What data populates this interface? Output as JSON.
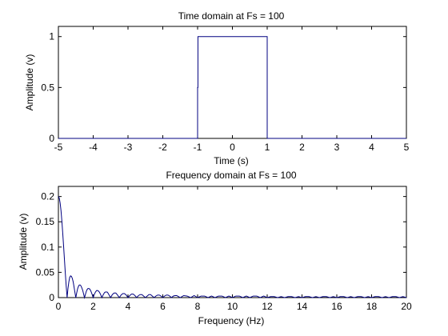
{
  "figure": {
    "background": "#ffffff",
    "axes_color": "#000000"
  },
  "chart_data": [
    {
      "type": "line",
      "title": "Time domain at Fs = 100",
      "xlabel": "Time (s)",
      "ylabel": "Amplitude (v)",
      "xlim": [
        -5,
        5
      ],
      "ylim": [
        0,
        1.1
      ],
      "xticks": [
        -5,
        -4,
        -3,
        -2,
        -1,
        0,
        1,
        2,
        3,
        4,
        5
      ],
      "xtick_labels": [
        "-5",
        "-4",
        "-3",
        "-2",
        "-1",
        "0",
        "1",
        "2",
        "3",
        "4",
        "5"
      ],
      "yticks": [
        0,
        0.5,
        1
      ],
      "ytick_labels": [
        "0",
        "0.5",
        "1"
      ],
      "grid": false,
      "series": [
        {
          "color": "#000080",
          "x": [
            -5,
            -1,
            -1,
            -0.99,
            -0.99,
            1,
            1,
            5
          ],
          "y": [
            0,
            0,
            0.5,
            0.5,
            1,
            1,
            0,
            0
          ]
        }
      ]
    },
    {
      "type": "line",
      "title": "Frequency domain at Fs = 100",
      "xlabel": "Frequency (Hz)",
      "ylabel": "Amplitude (v)",
      "xlim": [
        0,
        20
      ],
      "ylim": [
        0,
        0.22
      ],
      "xticks": [
        0,
        2,
        4,
        6,
        8,
        10,
        12,
        14,
        16,
        18,
        20
      ],
      "xtick_labels": [
        "0",
        "2",
        "4",
        "6",
        "8",
        "10",
        "12",
        "14",
        "16",
        "18",
        "20"
      ],
      "yticks": [
        0,
        0.05,
        0.1,
        0.15,
        0.2
      ],
      "ytick_labels": [
        "0",
        "0.05",
        "0.1",
        "0.15",
        "0.2"
      ],
      "grid": false,
      "series": [
        {
          "color": "#000080",
          "x": [
            0,
            0.05,
            0.1,
            0.15,
            0.2,
            0.25,
            0.3,
            0.35,
            0.4,
            0.45,
            0.5,
            0.55,
            0.6,
            0.65,
            0.7,
            0.75,
            0.8,
            0.85,
            0.9,
            0.95,
            1.0,
            1.05,
            1.1,
            1.15,
            1.2,
            1.25,
            1.3,
            1.35,
            1.4,
            1.45,
            1.5,
            1.55,
            1.6,
            1.65,
            1.7,
            1.75,
            1.8,
            1.85,
            1.9,
            1.95,
            2.0,
            2.05,
            2.1,
            2.15,
            2.2,
            2.25,
            2.3,
            2.35,
            2.4,
            2.45,
            2.5,
            2.55,
            2.6,
            2.65,
            2.7,
            2.75,
            2.8,
            2.85,
            2.9,
            2.95,
            3.0,
            3.1,
            3.2,
            3.3,
            3.4,
            3.5,
            3.6,
            3.7,
            3.8,
            3.9,
            4.0,
            4.1,
            4.2,
            4.3,
            4.4,
            4.5,
            4.6,
            4.7,
            4.8,
            4.9,
            5.0,
            5.1,
            5.2,
            5.3,
            5.4,
            5.5,
            5.6,
            5.7,
            5.8,
            5.9,
            6.0,
            6.1,
            6.2,
            6.3,
            6.4,
            6.5,
            6.6,
            6.7,
            6.8,
            6.9,
            7.0,
            7.2,
            7.4,
            7.6,
            7.8,
            8.0,
            8.2,
            8.4,
            8.6,
            8.8,
            9.0,
            9.2,
            9.4,
            9.6,
            9.8,
            10.0,
            10.2,
            10.4,
            10.6,
            10.8,
            11.0,
            11.2,
            11.4,
            11.6,
            11.8,
            12.0,
            12.2,
            12.4,
            12.6,
            12.8,
            13.0,
            13.2,
            13.4,
            13.6,
            13.8,
            14.0,
            14.2,
            14.4,
            14.6,
            14.8,
            15.0,
            15.2,
            15.4,
            15.6,
            15.8,
            16.0,
            16.2,
            16.4,
            16.6,
            16.8,
            17.0,
            17.2,
            17.4,
            17.6,
            17.8,
            18.0,
            18.2,
            18.4,
            18.6,
            18.8,
            19.0,
            19.2,
            19.4,
            19.6,
            19.8,
            20.0
          ],
          "y": [
            0.2,
            0.197,
            0.187,
            0.172,
            0.151,
            0.127,
            0.101,
            0.074,
            0.047,
            0.022,
            0.0,
            0.018,
            0.031,
            0.04,
            0.043,
            0.042,
            0.038,
            0.031,
            0.021,
            0.01,
            0.0,
            0.009,
            0.017,
            0.022,
            0.025,
            0.025,
            0.023,
            0.019,
            0.014,
            0.007,
            0.0,
            0.006,
            0.012,
            0.016,
            0.018,
            0.018,
            0.017,
            0.014,
            0.01,
            0.005,
            0.0,
            0.005,
            0.009,
            0.012,
            0.014,
            0.014,
            0.013,
            0.011,
            0.008,
            0.004,
            0.0,
            0.004,
            0.007,
            0.01,
            0.011,
            0.011,
            0.011,
            0.009,
            0.006,
            0.003,
            0.0,
            0.006,
            0.009,
            0.009,
            0.005,
            0.0,
            0.005,
            0.008,
            0.008,
            0.005,
            0.0,
            0.004,
            0.007,
            0.007,
            0.004,
            0.0,
            0.004,
            0.006,
            0.006,
            0.003,
            0.0,
            0.003,
            0.006,
            0.006,
            0.003,
            0.0,
            0.003,
            0.005,
            0.005,
            0.003,
            0.0,
            0.003,
            0.005,
            0.005,
            0.003,
            0.0,
            0.003,
            0.004,
            0.004,
            0.002,
            0.0,
            0.004,
            0.003,
            0.0,
            0.004,
            0.0,
            0.003,
            0.003,
            0.0,
            0.003,
            0.0,
            0.003,
            0.003,
            0.0,
            0.003,
            0.0,
            0.003,
            0.003,
            0.0,
            0.003,
            0.0,
            0.003,
            0.003,
            0.0,
            0.003,
            0.0,
            0.002,
            0.002,
            0.0,
            0.002,
            0.0,
            0.002,
            0.002,
            0.0,
            0.002,
            0.0,
            0.002,
            0.002,
            0.0,
            0.002,
            0.0,
            0.002,
            0.002,
            0.0,
            0.002,
            0.0,
            0.002,
            0.002,
            0.0,
            0.002,
            0.0,
            0.002,
            0.002,
            0.0,
            0.002,
            0.0,
            0.002,
            0.002,
            0.0,
            0.002,
            0.0,
            0.002,
            0.002,
            0.0,
            0.002,
            0.0
          ]
        }
      ]
    }
  ]
}
